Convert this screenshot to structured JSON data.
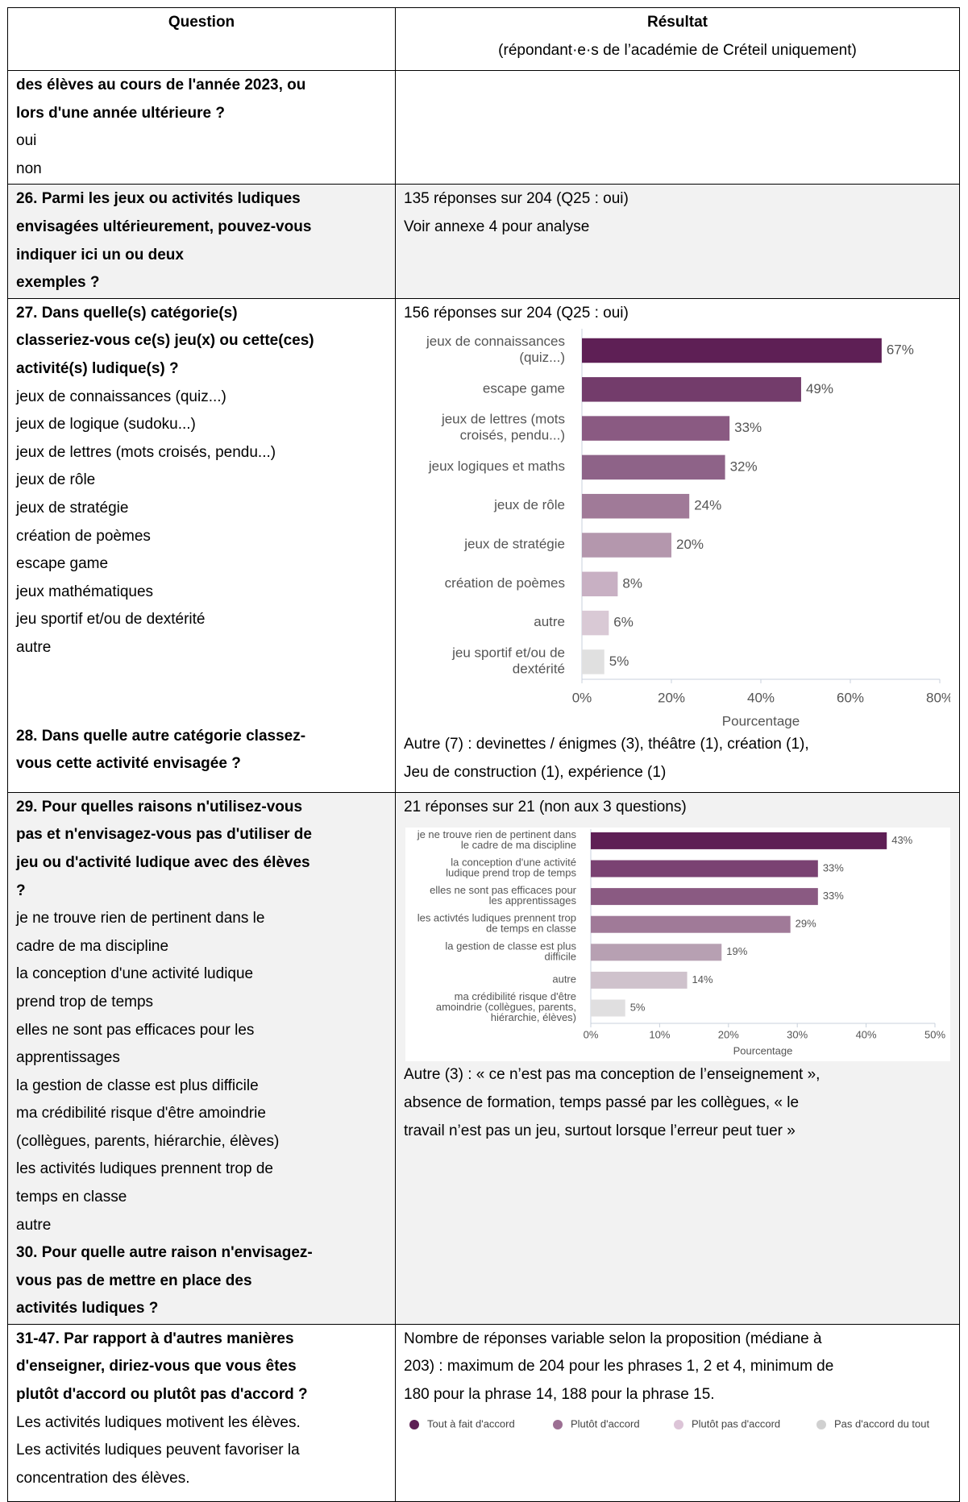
{
  "header": {
    "question": "Question",
    "result": "Résultat",
    "result_note": "(répondant·e·s de l’académie de Créteil uniquement)"
  },
  "rows": [
    {
      "question": {
        "title": [
          "des élèves au cours de l'année 2023, ou",
          "lors d'une année ultérieure ?"
        ],
        "options": [
          "oui",
          "non"
        ]
      }
    },
    {
      "question": {
        "title": [
          "26. Parmi les jeux ou activités ludiques",
          "envisagées ultérieurement, pouvez-vous",
          "indiquer ici un ou deux",
          "exemples ?"
        ]
      },
      "result": {
        "lines": [
          "135 réponses sur 204 (Q25 : oui)",
          "Voir annexe 4 pour analyse"
        ]
      }
    },
    {
      "question": {
        "title": [
          "27. Dans quelle(s) catégorie(s)",
          "classeriez-vous ce(s) jeu(x) ou cette(ces)",
          "activité(s) ludique(s) ?"
        ],
        "options": [
          "jeux de connaissances (quiz...)",
          "jeux de logique (sudoku...)",
          "jeux de lettres (mots croisés, pendu...)",
          "jeux de rôle",
          "jeux de stratégie",
          "création de poèmes",
          "escape game",
          "jeux mathématiques",
          "jeu sportif et/ou de dextérité",
          "autre"
        ],
        "followup": [
          "28. Dans quelle autre catégorie classez-",
          "vous cette activité envisagée ?"
        ]
      },
      "result": {
        "lines": [
          "156 réponses sur 204 (Q25 : oui)"
        ],
        "chart_data": {
          "type": "bar",
          "orientation": "horizontal",
          "categories": [
            "jeux de connaissances (quiz...)",
            "escape game",
            "jeux de lettres (mots croisés, pendu...)",
            "jeux logiques et maths",
            "jeux de rôle",
            "jeux de stratégie",
            "création de poèmes",
            "autre",
            "jeu sportif et/ou de dextérité"
          ],
          "values": [
            67,
            49,
            33,
            32,
            24,
            20,
            8,
            6,
            5
          ],
          "value_labels": [
            "67%",
            "49%",
            "33%",
            "32%",
            "24%",
            "20%",
            "8%",
            "6%",
            "5%"
          ],
          "colors": [
            "#5e1f55",
            "#733c6b",
            "#8a5a82",
            "#8e6388",
            "#a07a98",
            "#b497ad",
            "#c8b0c3",
            "#d9c9d5",
            "#e0e0e0"
          ],
          "x_label": "Pourcentage",
          "xlim": [
            0,
            80
          ],
          "xticks": [
            {
              "value": 0,
              "label": "0%"
            },
            {
              "value": 20,
              "label": "20%"
            },
            {
              "value": 40,
              "label": "40%"
            },
            {
              "value": 60,
              "label": "60%"
            },
            {
              "value": 80,
              "label": "80%"
            }
          ],
          "grid": false
        },
        "notes": [
          "Autre (7) : devinettes / énigmes (3), théâtre (1), création (1),",
          "Jeu de construction (1), expérience (1)"
        ]
      }
    },
    {
      "question": {
        "title": [
          "29. Pour quelles raisons n'utilisez-vous",
          "pas et n'envisagez-vous pas d'utiliser de",
          "jeu ou d'activité ludique avec des élèves",
          "?"
        ],
        "options": [
          "je ne trouve rien de pertinent dans le",
          "cadre de ma discipline",
          "la conception d'une activité ludique",
          "prend trop de temps",
          "elles ne sont pas efficaces pour les",
          "apprentissages",
          "la gestion de classe est plus difficile",
          "ma crédibilité risque d'être amoindrie",
          "(collègues, parents, hiérarchie, élèves)",
          "les activités ludiques prennent trop de",
          "temps en classe",
          "autre"
        ],
        "followup": [
          "30. Pour quelle autre raison n'envisagez-",
          "vous pas de mettre en place des",
          "activités ludiques ?"
        ]
      },
      "result": {
        "lines": [
          "21 réponses sur 21 (non aux 3 questions)"
        ],
        "chart_data": {
          "type": "bar",
          "orientation": "horizontal",
          "categories": [
            "je ne trouve rien de pertinent dans le cadre de ma discipline",
            "la conception d'une activité ludique prend trop de temps",
            "elles ne sont pas efficaces pour les apprentissages",
            "les activtés ludiques prennent trop de temps en classe",
            "la gestion de classe est plus difficile",
            "autre",
            "ma crédibilité risque d'être amoindrie (collègues, parents, hiérarchie, élèves)"
          ],
          "values": [
            43,
            33,
            33,
            29,
            19,
            14,
            5
          ],
          "value_labels": [
            "43%",
            "33%",
            "33%",
            "29%",
            "19%",
            "14%",
            "5%"
          ],
          "colors": [
            "#5e1f55",
            "#7a4272",
            "#8a5a82",
            "#a07a98",
            "#b7a0b2",
            "#cfc2cc",
            "#e0dfe0"
          ],
          "x_label": "Pourcentage",
          "xlim": [
            0,
            50
          ],
          "xticks": [
            {
              "value": 0,
              "label": "0%"
            },
            {
              "value": 10,
              "label": "10%"
            },
            {
              "value": 20,
              "label": "20%"
            },
            {
              "value": 30,
              "label": "30%"
            },
            {
              "value": 40,
              "label": "40%"
            },
            {
              "value": 50,
              "label": "50%"
            }
          ],
          "grid": false
        },
        "notes": [
          "Autre (3) : « ce n’est pas ma conception de l’enseignement »,",
          "absence de formation, temps passé par les collègues, « le",
          "travail n’est pas un jeu, surtout lorsque l’erreur peut tuer »"
        ]
      }
    },
    {
      "question": {
        "title": [
          "31-47. Par rapport à d'autres manières",
          "d'enseigner, diriez-vous que vous êtes",
          "plutôt d'accord ou plutôt pas d'accord ?"
        ],
        "options": [
          "Les activités ludiques motivent les élèves.",
          "Les activités ludiques peuvent favoriser la",
          "concentration des élèves."
        ]
      },
      "result": {
        "lines": [
          "Nombre de réponses variable selon la proposition (médiane à",
          "203) : maximum de 204 pour les phrases 1, 2 et 4, minimum de",
          "180 pour la phrase 14, 188 pour la phrase 15."
        ],
        "legend": [
          {
            "name": "Tout à fait d'accord",
            "color": "#5e1f55"
          },
          {
            "name": "Plutôt d'accord",
            "color": "#9c6f93"
          },
          {
            "name": "Plutôt pas d'accord",
            "color": "#dcc4d7"
          },
          {
            "name": "Pas d'accord du tout",
            "color": "#d0d0d0"
          }
        ]
      }
    }
  ]
}
